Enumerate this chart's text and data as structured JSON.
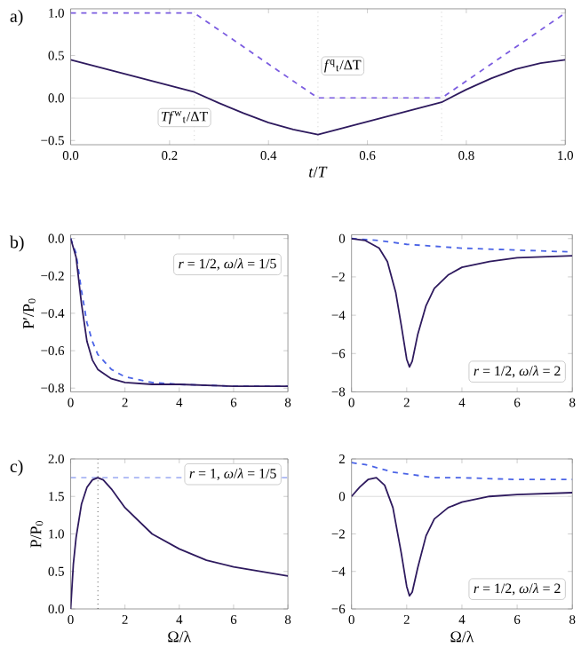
{
  "chart_data": [
    {
      "type": "line",
      "xlabel": "*t*/*T*",
      "xlim": [
        0,
        1
      ],
      "ylim": [
        -0.55,
        1.05
      ],
      "xticks": [
        {
          "value": 0,
          "label": "0.0"
        },
        0.2,
        0.4,
        0.6,
        0.8,
        {
          "value": 1,
          "label": "1.0"
        }
      ],
      "yticks": [
        {
          "value": -0.5,
          "label": "−0.5"
        },
        {
          "value": 0,
          "label": "0.0"
        },
        0.5,
        {
          "value": 1,
          "label": "1.0"
        }
      ],
      "ref_lines": [
        {
          "axis": "x",
          "value": 0.25,
          "color": "#cccccc",
          "line_style": "dotted"
        },
        {
          "axis": "x",
          "value": 0.5,
          "color": "#cccccc",
          "line_style": "dotted"
        },
        {
          "axis": "x",
          "value": 0.75,
          "color": "#cccccc",
          "line_style": "dotted"
        },
        {
          "axis": "y",
          "value": 0,
          "color": "#dddddd",
          "line_style": "solid"
        }
      ],
      "series": [
        {
          "name": "*f*$^{q}$$_{t}$/ΔT",
          "color": "#7b5ce0",
          "line_style": "dashed",
          "x": [
            0,
            0.25,
            0.5,
            0.75,
            1
          ],
          "values": [
            1,
            1,
            0,
            0,
            1
          ]
        },
        {
          "name": "*Tf*$^{w}$$_{t}$/ΔT",
          "color": "#2e1a5e",
          "line_style": "solid",
          "x": [
            0,
            0.25,
            0.3,
            0.35,
            0.4,
            0.45,
            0.5,
            0.75,
            0.8,
            0.85,
            0.9,
            0.95,
            1
          ],
          "values": [
            0.45,
            0.07,
            -0.06,
            -0.18,
            -0.29,
            -0.37,
            -0.43,
            -0.05,
            0.1,
            0.23,
            0.34,
            0.41,
            0.45
          ]
        }
      ],
      "annotations": [
        "a)"
      ]
    },
    {
      "type": "line",
      "ylabel": "P′/P$_{0}$",
      "xlim": [
        0,
        8
      ],
      "ylim": [
        -0.82,
        0.02
      ],
      "xticks": [
        0,
        2,
        4,
        6,
        8
      ],
      "yticks": [
        {
          "value": -0.8,
          "label": "−0.8"
        },
        {
          "value": -0.6,
          "label": "−0.6"
        },
        {
          "value": -0.4,
          "label": "−0.4"
        },
        {
          "value": -0.2,
          "label": "−0.2"
        },
        {
          "value": 0,
          "label": "0.0"
        }
      ],
      "series": [
        {
          "color": "#4a63e6",
          "line_style": "dashed",
          "x": [
            0,
            0.2,
            0.4,
            0.6,
            0.8,
            1,
            1.5,
            2,
            3,
            4,
            6,
            8
          ],
          "values": [
            0,
            -0.08,
            -0.28,
            -0.45,
            -0.55,
            -0.62,
            -0.7,
            -0.74,
            -0.77,
            -0.78,
            -0.79,
            -0.79
          ]
        },
        {
          "color": "#2e1a5e",
          "line_style": "solid",
          "x": [
            0,
            0.2,
            0.4,
            0.6,
            0.8,
            1,
            1.5,
            2,
            3,
            4,
            6,
            8
          ],
          "values": [
            0,
            -0.1,
            -0.35,
            -0.55,
            -0.65,
            -0.7,
            -0.75,
            -0.77,
            -0.78,
            -0.78,
            -0.79,
            -0.79
          ]
        }
      ],
      "annotations": [
        "b)",
        "*r* = 1/2,   *ω*/*λ* = 1/5"
      ]
    },
    {
      "type": "line",
      "xlim": [
        0,
        8
      ],
      "ylim": [
        -8,
        0.2
      ],
      "xticks": [
        0,
        2,
        4,
        6,
        8
      ],
      "yticks": [
        {
          "value": -8,
          "label": "−8"
        },
        {
          "value": -6,
          "label": "−6"
        },
        {
          "value": -4,
          "label": "−4"
        },
        {
          "value": -2,
          "label": "−2"
        },
        0
      ],
      "series": [
        {
          "color": "#4a63e6",
          "line_style": "dashed",
          "x": [
            0,
            1,
            2,
            3,
            4,
            6,
            8
          ],
          "values": [
            0,
            -0.1,
            -0.3,
            -0.4,
            -0.5,
            -0.6,
            -0.7
          ]
        },
        {
          "color": "#2e1a5e",
          "line_style": "solid",
          "x": [
            0,
            0.5,
            1,
            1.3,
            1.6,
            1.8,
            2,
            2.1,
            2.2,
            2.4,
            2.7,
            3,
            3.5,
            4,
            5,
            6,
            8
          ],
          "values": [
            0,
            -0.1,
            -0.5,
            -1.2,
            -2.8,
            -4.5,
            -6.3,
            -6.7,
            -6.4,
            -5,
            -3.5,
            -2.6,
            -1.9,
            -1.5,
            -1.2,
            -1.0,
            -0.9
          ]
        }
      ],
      "annotations": [
        "*r* = 1/2,   *ω*/*λ* = 2"
      ]
    },
    {
      "type": "line",
      "xlabel": "Ω/λ",
      "ylabel": "P/P$_{0}$",
      "xlim": [
        0,
        8
      ],
      "ylim": [
        0,
        2
      ],
      "xticks": [
        0,
        2,
        4,
        6,
        8
      ],
      "yticks": [
        {
          "value": 0,
          "label": "0.0"
        },
        0.5,
        {
          "value": 1,
          "label": "1.0"
        },
        1.5,
        {
          "value": 2,
          "label": "2.0"
        }
      ],
      "ref_lines": [
        {
          "axis": "y",
          "value": 1.75,
          "color": "#4a63e6",
          "line_style": "dashed"
        },
        {
          "axis": "x",
          "value": 1,
          "color": "#333333",
          "line_style": "dotted"
        }
      ],
      "series": [
        {
          "color": "#2e1a5e",
          "line_style": "solid",
          "x": [
            0,
            0.1,
            0.2,
            0.4,
            0.6,
            0.8,
            1,
            1.2,
            1.5,
            2,
            3,
            4,
            5,
            6,
            8
          ],
          "values": [
            0,
            0.6,
            0.95,
            1.4,
            1.62,
            1.72,
            1.75,
            1.72,
            1.6,
            1.35,
            1,
            0.8,
            0.65,
            0.56,
            0.44
          ]
        }
      ],
      "annotations": [
        "c)",
        "*r* = 1,   *ω*/*λ* = 1/5"
      ]
    },
    {
      "type": "line",
      "xlabel": "Ω/λ",
      "xlim": [
        0,
        8
      ],
      "ylim": [
        -6,
        2
      ],
      "xticks": [
        0,
        2,
        4,
        6,
        8
      ],
      "yticks": [
        {
          "value": -6,
          "label": "−6"
        },
        {
          "value": -4,
          "label": "−4"
        },
        {
          "value": -2,
          "label": "−2"
        },
        0,
        2
      ],
      "ref_lines": [
        {
          "axis": "y",
          "value": 0,
          "color": "#dddddd",
          "line_style": "solid"
        }
      ],
      "series": [
        {
          "color": "#4a63e6",
          "line_style": "dashed",
          "x": [
            0,
            0.5,
            1,
            1.5,
            2,
            3,
            4,
            6,
            8
          ],
          "values": [
            1.8,
            1.7,
            1.5,
            1.3,
            1.2,
            1,
            1,
            0.9,
            0.9
          ]
        },
        {
          "color": "#2e1a5e",
          "line_style": "solid",
          "x": [
            0,
            0.3,
            0.6,
            0.9,
            1.2,
            1.5,
            1.8,
            2,
            2.1,
            2.2,
            2.4,
            2.7,
            3,
            3.5,
            4,
            5,
            6,
            8
          ],
          "values": [
            0,
            0.5,
            0.9,
            1,
            0.6,
            -0.6,
            -3,
            -4.8,
            -5.3,
            -5.1,
            -3.8,
            -2.1,
            -1.2,
            -0.6,
            -0.3,
            0,
            0.1,
            0.2
          ]
        }
      ],
      "annotations": [
        "*r* = 1/2,   *ω*/*λ* = 2"
      ]
    }
  ]
}
